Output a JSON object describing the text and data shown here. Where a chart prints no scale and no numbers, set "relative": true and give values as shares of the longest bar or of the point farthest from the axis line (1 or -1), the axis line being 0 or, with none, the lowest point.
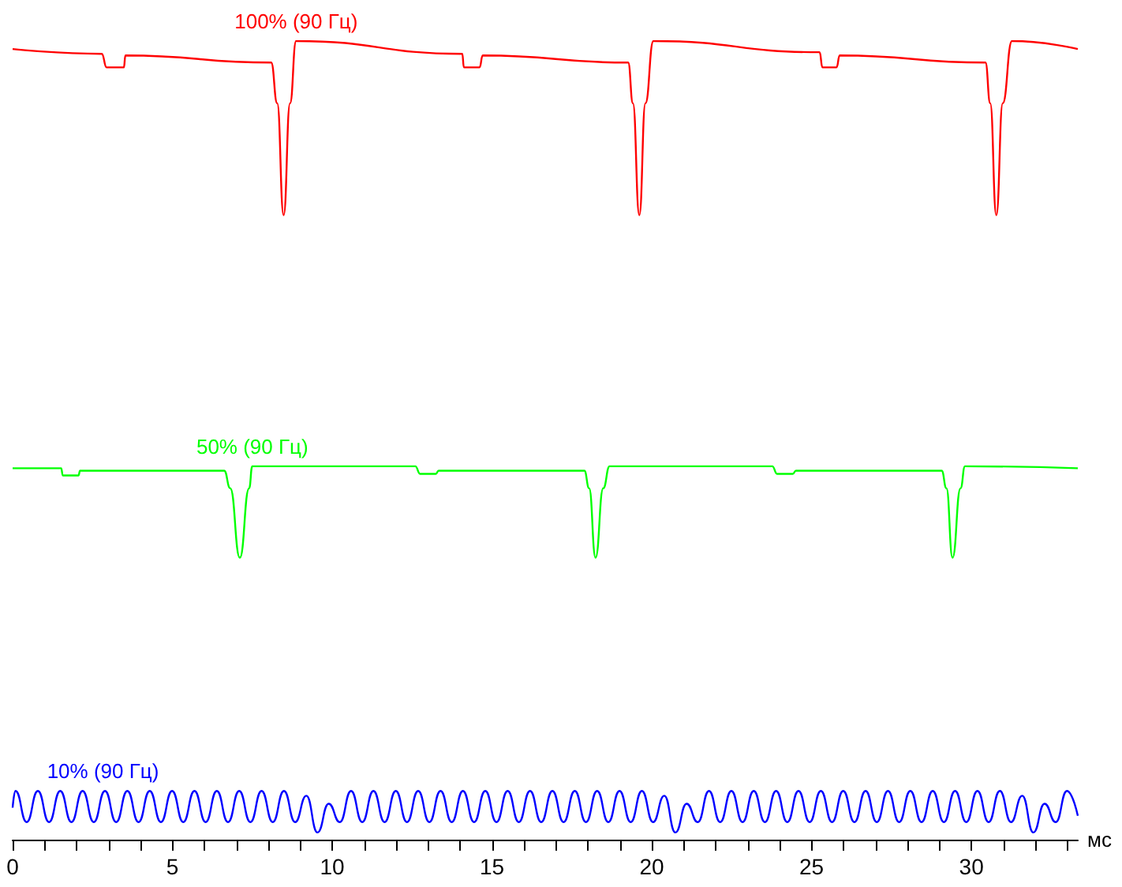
{
  "chart_data": {
    "type": "line",
    "relative": true,
    "xlabel": "мс",
    "xlim": [
      0,
      33.33
    ],
    "xticks": [
      0,
      {
        "value": 1,
        "label": null
      },
      {
        "value": 2,
        "label": null
      },
      {
        "value": 3,
        "label": null
      },
      {
        "value": 4,
        "label": null
      },
      5,
      {
        "value": 6,
        "label": null
      },
      {
        "value": 7,
        "label": null
      },
      {
        "value": 8,
        "label": null
      },
      {
        "value": 9,
        "label": null
      },
      10,
      {
        "value": 11,
        "label": null
      },
      {
        "value": 12,
        "label": null
      },
      {
        "value": 13,
        "label": null
      },
      {
        "value": 14,
        "label": null
      },
      15,
      {
        "value": 16,
        "label": null
      },
      {
        "value": 17,
        "label": null
      },
      {
        "value": 18,
        "label": null
      },
      {
        "value": 19,
        "label": null
      },
      20,
      {
        "value": 21,
        "label": null
      },
      {
        "value": 22,
        "label": null
      },
      {
        "value": 23,
        "label": null
      },
      {
        "value": 24,
        "label": null
      },
      25,
      {
        "value": 26,
        "label": null
      },
      {
        "value": 27,
        "label": null
      },
      {
        "value": 28,
        "label": null
      },
      {
        "value": 29,
        "label": null
      },
      30,
      {
        "value": 31,
        "label": null
      },
      {
        "value": 32,
        "label": null
      },
      {
        "value": 33,
        "label": null
      }
    ],
    "grid": false,
    "legend": false,
    "marker": "none",
    "line_style": "solid",
    "series": [
      {
        "name": "100% (90 Гц)",
        "color": "#ff0000",
        "x": [
          0,
          2.79,
          2.94,
          3.48,
          3.53,
          8.09,
          8.28,
          8.48,
          8.68,
          8.87,
          14.07,
          14.12,
          14.61,
          14.71,
          19.26,
          19.41,
          19.61,
          19.8,
          20.05,
          25.25,
          25.34,
          25.78,
          25.88,
          30.44,
          30.59,
          30.78,
          30.98,
          31.27,
          33.33
        ],
        "values": [
          0.99,
          0.984,
          0.967,
          0.967,
          0.982,
          0.973,
          0.922,
          0.782,
          0.922,
          1,
          0.984,
          0.967,
          0.967,
          0.982,
          0.973,
          0.922,
          0.782,
          0.922,
          1,
          0.986,
          0.967,
          0.967,
          0.982,
          0.973,
          0.922,
          0.782,
          0.922,
          1,
          0.99
        ]
      },
      {
        "name": "50% (90 Гц)",
        "color": "#00ff00",
        "x": [
          0,
          1.52,
          1.57,
          2.06,
          2.11,
          6.62,
          6.81,
          7.11,
          7.4,
          7.5,
          12.6,
          12.75,
          13.24,
          13.33,
          17.89,
          18.04,
          18.24,
          18.48,
          18.68,
          23.77,
          23.92,
          24.41,
          24.51,
          29.07,
          29.22,
          29.41,
          29.66,
          29.8,
          33.33
        ],
        "values": [
          0.465,
          0.465,
          0.456,
          0.456,
          0.462,
          0.462,
          0.44,
          0.353,
          0.44,
          0.4675,
          0.4675,
          0.458,
          0.458,
          0.462,
          0.462,
          0.44,
          0.353,
          0.44,
          0.4675,
          0.4675,
          0.458,
          0.458,
          0.462,
          0.462,
          0.44,
          0.353,
          0.44,
          0.4675,
          0.465
        ]
      },
      {
        "name": "10% (90 Гц)",
        "color": "#0000ff",
        "x": [
          0,
          0.09,
          0.44,
          0.79,
          1.14,
          1.49,
          1.84,
          2.19,
          2.54,
          2.89,
          3.24,
          3.59,
          3.94,
          4.29,
          4.64,
          4.99,
          5.34,
          5.69,
          6.04,
          6.39,
          6.74,
          7.09,
          7.44,
          7.79,
          8.14,
          8.49,
          8.84,
          9.19,
          9.54,
          9.89,
          10.24,
          10.59,
          10.94,
          11.29,
          11.64,
          11.99,
          12.34,
          12.69,
          13.04,
          13.39,
          13.74,
          14.09,
          14.44,
          14.79,
          15.14,
          15.49,
          15.84,
          16.19,
          16.54,
          16.89,
          17.24,
          17.59,
          17.94,
          18.29,
          18.64,
          18.99,
          19.34,
          19.69,
          20.04,
          20.39,
          20.74,
          21.09,
          21.44,
          21.79,
          22.14,
          22.49,
          22.84,
          23.19,
          23.54,
          23.89,
          24.24,
          24.59,
          24.94,
          25.29,
          25.64,
          25.99,
          26.34,
          26.69,
          27.04,
          27.39,
          27.74,
          28.09,
          28.44,
          28.79,
          29.14,
          29.49,
          29.84,
          30.19,
          30.54,
          30.89,
          31.24,
          31.59,
          31.94,
          32.29,
          32.64,
          32.99,
          33.33
        ],
        "values": [
          0.04,
          0.061,
          0.022,
          0.061,
          0.022,
          0.061,
          0.022,
          0.061,
          0.022,
          0.061,
          0.022,
          0.061,
          0.022,
          0.061,
          0.022,
          0.061,
          0.022,
          0.061,
          0.022,
          0.061,
          0.022,
          0.061,
          0.022,
          0.061,
          0.022,
          0.061,
          0.022,
          0.055,
          0.009,
          0.045,
          0.022,
          0.061,
          0.022,
          0.061,
          0.022,
          0.061,
          0.022,
          0.061,
          0.022,
          0.061,
          0.022,
          0.061,
          0.022,
          0.061,
          0.022,
          0.061,
          0.022,
          0.061,
          0.022,
          0.061,
          0.022,
          0.061,
          0.022,
          0.061,
          0.022,
          0.061,
          0.022,
          0.061,
          0.022,
          0.055,
          0.009,
          0.045,
          0.022,
          0.061,
          0.022,
          0.061,
          0.022,
          0.061,
          0.022,
          0.061,
          0.022,
          0.061,
          0.022,
          0.061,
          0.022,
          0.061,
          0.022,
          0.061,
          0.022,
          0.061,
          0.022,
          0.061,
          0.022,
          0.061,
          0.022,
          0.061,
          0.022,
          0.061,
          0.022,
          0.061,
          0.022,
          0.055,
          0.009,
          0.045,
          0.022,
          0.061,
          0.03
        ]
      }
    ]
  }
}
